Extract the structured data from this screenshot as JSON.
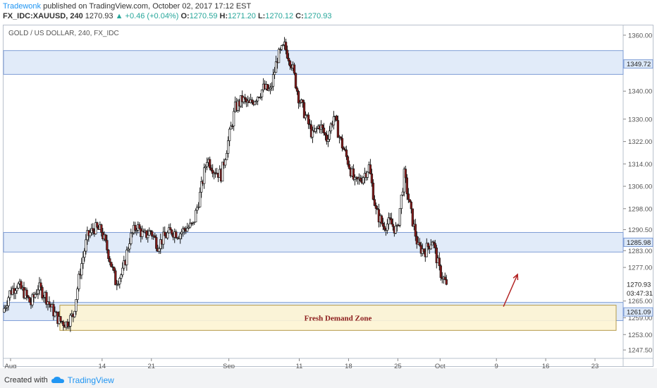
{
  "header": {
    "author": "Tradewonk",
    "published_text": "published on TradingView.com, October 02, 2017 17:12 EST",
    "symbol": "FX_IDC:XAUUSD, 240",
    "last_price": "1270.93",
    "change": "+0.46 (+0.04%)",
    "o_label": "O:",
    "o_value": "1270.59",
    "h_label": "H:",
    "h_value": "1271.20",
    "l_label": "L:",
    "l_value": "1270.12",
    "c_label": "C:",
    "c_value": "1270.93"
  },
  "chart_title": "GOLD / US DOLLAR, 240, FX_IDC",
  "footer": {
    "created_with": "Created with",
    "brand": "TradingView"
  },
  "colors": {
    "up_candle": "#ffffff",
    "down_candle": "#8b1a1a",
    "wick": "#1a1a1a",
    "zone_fill": "#dce8f8",
    "zone_stroke": "#7f9ed6",
    "demand_fill": "#fdf4d3",
    "demand_stroke": "#b59b4a",
    "demand_text": "#8b1a1a",
    "arrow": "#b22222"
  },
  "chart_data": {
    "type": "candlestick",
    "title": "GOLD / US DOLLAR, 240, FX_IDC",
    "ylim": [
      1244.5,
      1363.5
    ],
    "y_ticks": [
      "1360.00",
      "1340.00",
      "1330.00",
      "1322.00",
      "1314.00",
      "1306.00",
      "1298.00",
      "1290.50",
      "1283.00",
      "1277.00",
      "1265.00",
      "1259.00",
      "1253.00",
      "1247.50"
    ],
    "y_tick_values": [
      1360.0,
      1340.0,
      1330.0,
      1322.0,
      1314.0,
      1306.0,
      1298.0,
      1290.5,
      1283.0,
      1277.0,
      1265.0,
      1259.0,
      1253.0,
      1247.5
    ],
    "x_ticks": [
      "Aug",
      "14",
      "21",
      "Sep",
      "11",
      "18",
      "25",
      "Oct",
      "9",
      "16",
      "23"
    ],
    "x_tick_dates": [
      "2017-08-01",
      "2017-08-14",
      "2017-08-21",
      "2017-09-01",
      "2017-09-11",
      "2017-09-18",
      "2017-09-25",
      "2017-10-01",
      "2017-10-09",
      "2017-10-16",
      "2017-10-23"
    ],
    "price_labels": [
      {
        "text": "1349.72",
        "value": 1349.72,
        "style": "zone"
      },
      {
        "text": "1285.98",
        "value": 1285.98,
        "style": "zone"
      },
      {
        "text": "1270.93",
        "value": 1270.93,
        "style": "plain"
      },
      {
        "text": "03:47:31",
        "value": 1267.8,
        "style": "plain"
      },
      {
        "text": "1261.09",
        "value": 1261.09,
        "style": "zone"
      }
    ],
    "zones": [
      {
        "low": 1346.0,
        "high": 1354.5,
        "from": "2017-07-31",
        "to": "2017-10-27"
      },
      {
        "low": 1282.5,
        "high": 1289.5,
        "from": "2017-07-31",
        "to": "2017-10-27"
      },
      {
        "low": 1258.0,
        "high": 1264.5,
        "from": "2017-07-31",
        "to": "2017-10-27"
      }
    ],
    "demand_zone": {
      "label": "Fresh Demand Zone",
      "low": 1254.5,
      "high": 1263.5,
      "from": "2017-08-08",
      "to": "2017-10-26"
    },
    "arrow": {
      "from_date": "2017-10-10",
      "from_price": 1263.0,
      "to_date": "2017-10-12",
      "to_price": 1274.5
    },
    "close_path": [
      {
        "date": "2017-07-31",
        "close": 1261
      },
      {
        "date": "2017-08-01",
        "close": 1268
      },
      {
        "date": "2017-08-02",
        "close": 1271
      },
      {
        "date": "2017-08-03",
        "close": 1268
      },
      {
        "date": "2017-08-04",
        "close": 1264
      },
      {
        "date": "2017-08-05",
        "close": 1270
      },
      {
        "date": "2017-08-06",
        "close": 1267
      },
      {
        "date": "2017-08-07",
        "close": 1262
      },
      {
        "date": "2017-08-08",
        "close": 1258
      },
      {
        "date": "2017-08-09",
        "close": 1257
      },
      {
        "date": "2017-08-10",
        "close": 1260
      },
      {
        "date": "2017-08-11",
        "close": 1276
      },
      {
        "date": "2017-08-12",
        "close": 1288
      },
      {
        "date": "2017-08-13",
        "close": 1291
      },
      {
        "date": "2017-08-14",
        "close": 1290
      },
      {
        "date": "2017-08-15",
        "close": 1282
      },
      {
        "date": "2017-08-16",
        "close": 1272
      },
      {
        "date": "2017-08-17",
        "close": 1275
      },
      {
        "date": "2017-08-18",
        "close": 1287
      },
      {
        "date": "2017-08-19",
        "close": 1292
      },
      {
        "date": "2017-08-20",
        "close": 1288
      },
      {
        "date": "2017-08-21",
        "close": 1290
      },
      {
        "date": "2017-08-22",
        "close": 1285
      },
      {
        "date": "2017-08-23",
        "close": 1288
      },
      {
        "date": "2017-08-24",
        "close": 1290
      },
      {
        "date": "2017-08-25",
        "close": 1289
      },
      {
        "date": "2017-08-26",
        "close": 1291
      },
      {
        "date": "2017-08-27",
        "close": 1292
      },
      {
        "date": "2017-08-28",
        "close": 1303
      },
      {
        "date": "2017-08-29",
        "close": 1316
      },
      {
        "date": "2017-08-30",
        "close": 1312
      },
      {
        "date": "2017-08-31",
        "close": 1310
      },
      {
        "date": "2017-09-01",
        "close": 1322
      },
      {
        "date": "2017-09-02",
        "close": 1334
      },
      {
        "date": "2017-09-03",
        "close": 1337
      },
      {
        "date": "2017-09-04",
        "close": 1335
      },
      {
        "date": "2017-09-05",
        "close": 1338
      },
      {
        "date": "2017-09-06",
        "close": 1341
      },
      {
        "date": "2017-09-07",
        "close": 1340
      },
      {
        "date": "2017-09-08",
        "close": 1352
      },
      {
        "date": "2017-09-09",
        "close": 1356
      },
      {
        "date": "2017-09-10",
        "close": 1350
      },
      {
        "date": "2017-09-11",
        "close": 1338
      },
      {
        "date": "2017-09-12",
        "close": 1331
      },
      {
        "date": "2017-09-13",
        "close": 1324
      },
      {
        "date": "2017-09-14",
        "close": 1328
      },
      {
        "date": "2017-09-15",
        "close": 1323
      },
      {
        "date": "2017-09-16",
        "close": 1331
      },
      {
        "date": "2017-09-17",
        "close": 1322
      },
      {
        "date": "2017-09-18",
        "close": 1315
      },
      {
        "date": "2017-09-19",
        "close": 1307
      },
      {
        "date": "2017-09-20",
        "close": 1309
      },
      {
        "date": "2017-09-21",
        "close": 1313
      },
      {
        "date": "2017-09-22",
        "close": 1297
      },
      {
        "date": "2017-09-23",
        "close": 1292
      },
      {
        "date": "2017-09-24",
        "close": 1293
      },
      {
        "date": "2017-09-25",
        "close": 1290
      },
      {
        "date": "2017-09-26",
        "close": 1310
      },
      {
        "date": "2017-09-27",
        "close": 1296
      },
      {
        "date": "2017-09-28",
        "close": 1284
      },
      {
        "date": "2017-09-29",
        "close": 1283
      },
      {
        "date": "2017-09-30",
        "close": 1287
      },
      {
        "date": "2017-10-01",
        "close": 1276
      },
      {
        "date": "2017-10-02",
        "close": 1270.93
      }
    ]
  }
}
